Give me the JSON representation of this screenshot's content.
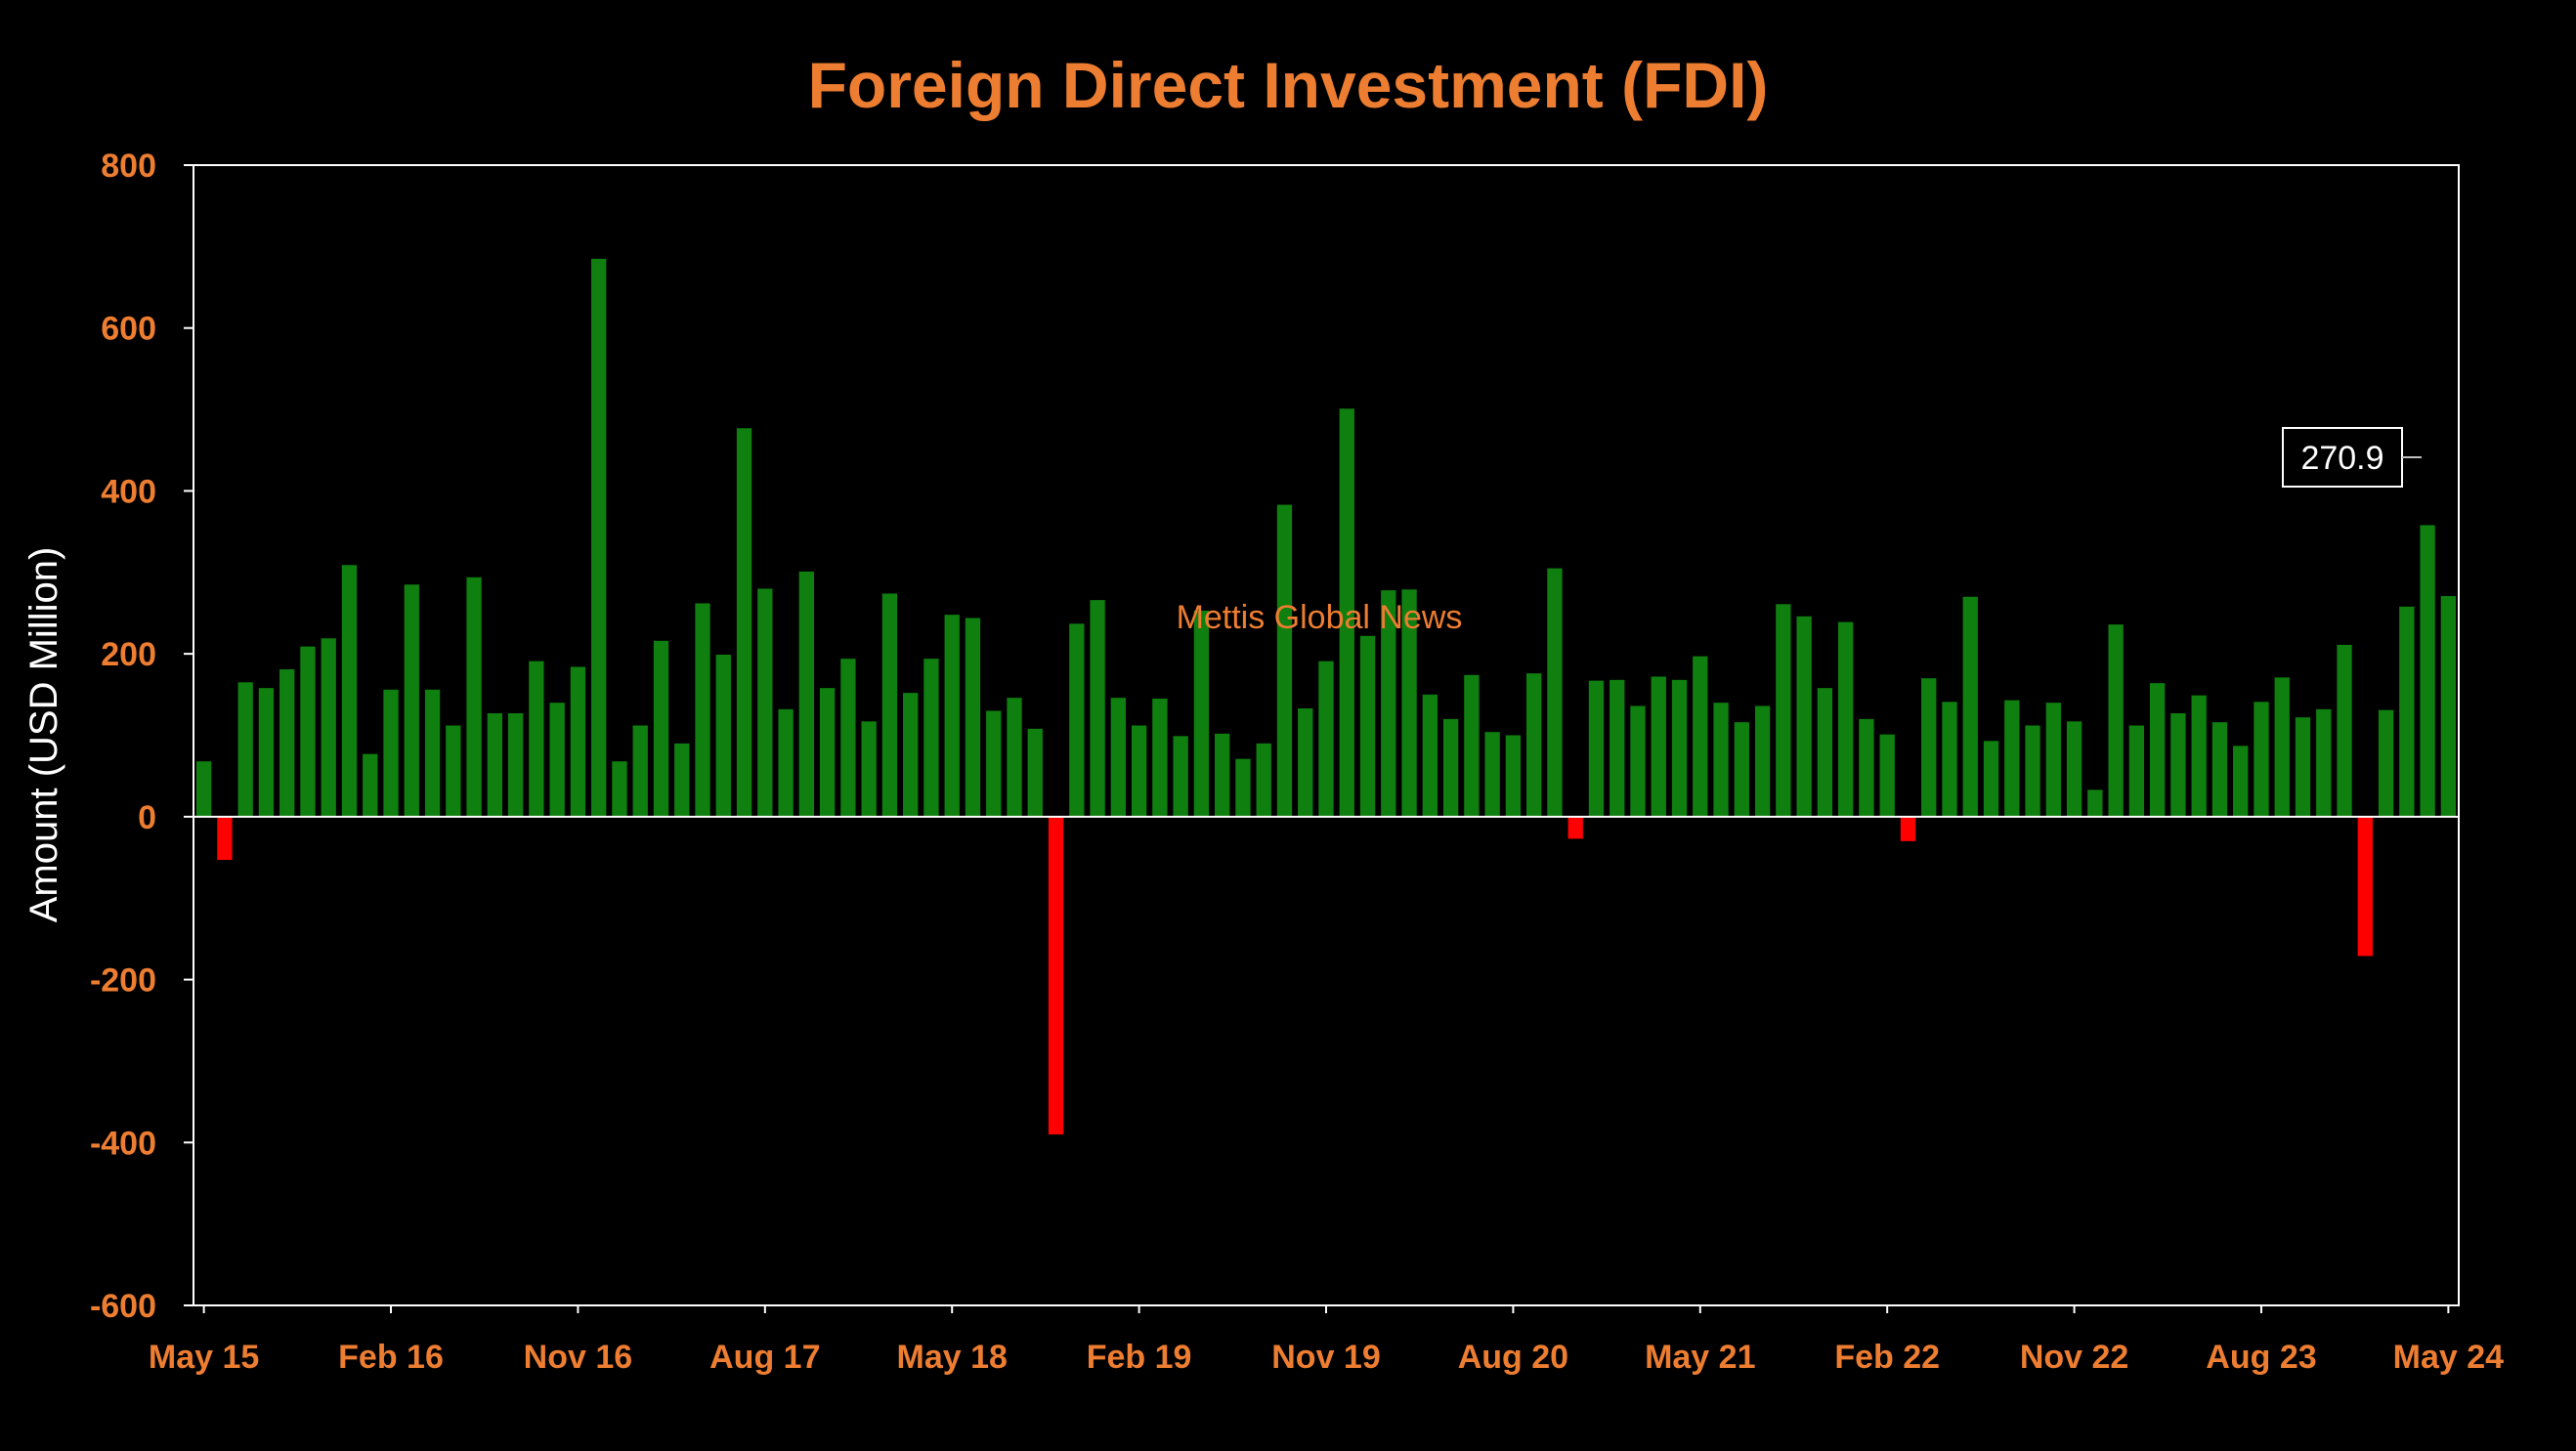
{
  "colors": {
    "background": "#000000",
    "text_accent": "#ED7D31",
    "positive": "#0F7F0F",
    "negative": "#FF0000",
    "axis": "#FFFFFF"
  },
  "watermark": "Mettis Global News",
  "chart_data": {
    "type": "bar",
    "title": "Foreign Direct Investment (FDI)",
    "xlabel": "",
    "ylabel": "Amount (USD Million)",
    "ylim": [
      -600,
      800
    ],
    "yticks": [
      -600,
      -400,
      -200,
      0,
      200,
      400,
      600,
      800
    ],
    "x_tick_labels": [
      "May 15",
      "Feb 16",
      "Nov 16",
      "Aug 17",
      "May 18",
      "Feb 19",
      "Nov 19",
      "Aug 20",
      "May 21",
      "Feb 22",
      "Nov 22",
      "Aug 23",
      "May 24"
    ],
    "x_tick_every": 9,
    "grid": false,
    "legend": "none",
    "values": [
      68,
      -53,
      165,
      158,
      181,
      209,
      219,
      309,
      77,
      156,
      285,
      156,
      112,
      294,
      127,
      127,
      191,
      140,
      184,
      685,
      68,
      112,
      216,
      90,
      262,
      199,
      477,
      280,
      132,
      301,
      158,
      194,
      117,
      274,
      152,
      194,
      248,
      244,
      130,
      146,
      108,
      -390,
      237,
      266,
      146,
      112,
      145,
      99,
      253,
      102,
      71,
      90,
      383,
      133,
      191,
      501,
      222,
      278,
      279,
      150,
      120,
      174,
      104,
      100,
      176,
      305,
      -27,
      167,
      168,
      136,
      172,
      168,
      197,
      140,
      116,
      136,
      261,
      246,
      158,
      239,
      120,
      101,
      -30,
      170,
      141,
      270,
      93,
      143,
      112,
      140,
      117,
      33,
      236,
      112,
      164,
      127,
      149,
      116,
      87,
      141,
      171,
      122,
      132,
      211,
      -171,
      131,
      258,
      358,
      270.9
    ],
    "annotations": [
      {
        "text": "270.9",
        "target_index": 109
      }
    ]
  }
}
